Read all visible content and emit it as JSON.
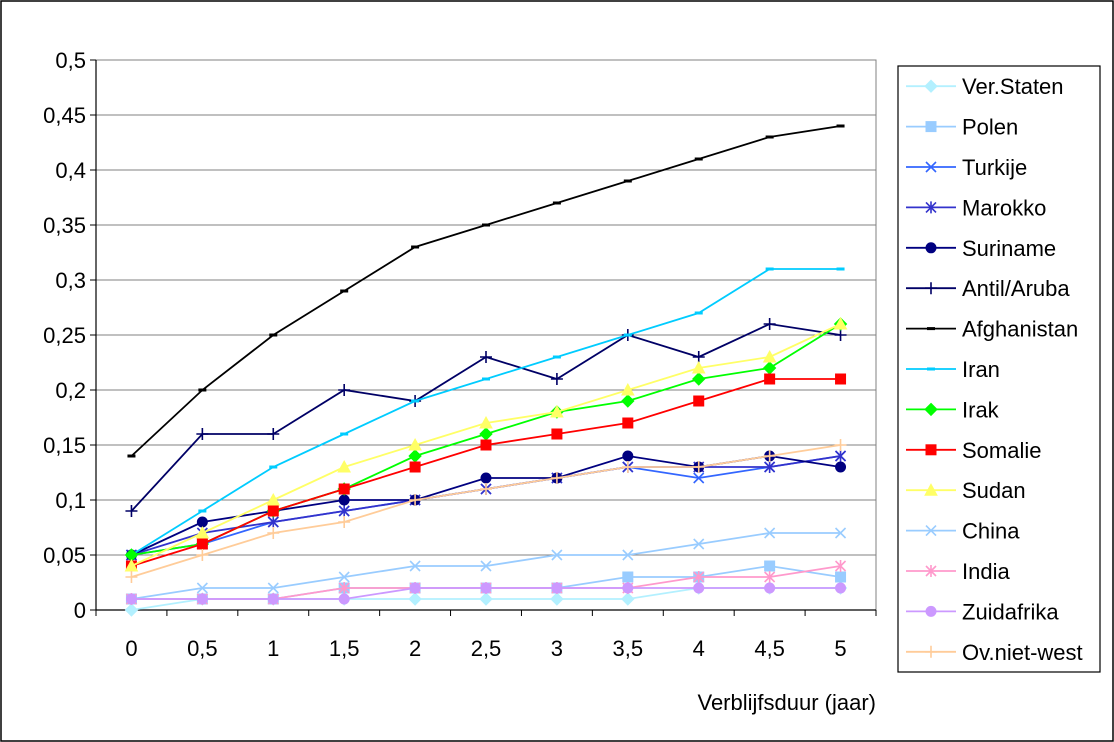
{
  "chart_data": {
    "type": "line",
    "xlabel": "Verblijfsduur (jaar)",
    "ylabel": "",
    "xlim": [
      0,
      5
    ],
    "ylim": [
      0,
      0.5
    ],
    "x": [
      0,
      0.5,
      1,
      1.5,
      2,
      2.5,
      3,
      3.5,
      4,
      4.5,
      5
    ],
    "x_tick_labels": [
      "0",
      "0,5",
      "1",
      "1,5",
      "2",
      "2,5",
      "3",
      "3,5",
      "4",
      "4,5",
      "5"
    ],
    "y_ticks": [
      0,
      0.05,
      0.1,
      0.15,
      0.2,
      0.25,
      0.3,
      0.35,
      0.4,
      0.45,
      0.5
    ],
    "y_tick_labels": [
      "0",
      "0,05",
      "0,1",
      "0,15",
      "0,2",
      "0,25",
      "0,3",
      "0,35",
      "0,4",
      "0,45",
      "0,5"
    ],
    "grid": "horizontal",
    "legend": "right",
    "series": [
      {
        "name": "Ver.Staten",
        "color": "#b3f0ff",
        "marker": "diamond",
        "values": [
          0.0,
          0.01,
          0.01,
          0.01,
          0.01,
          0.01,
          0.01,
          0.01,
          0.02,
          0.02,
          0.02
        ]
      },
      {
        "name": "Polen",
        "color": "#99ccff",
        "marker": "square",
        "values": [
          0.01,
          0.01,
          0.01,
          0.02,
          0.02,
          0.02,
          0.02,
          0.03,
          0.03,
          0.04,
          0.03
        ]
      },
      {
        "name": "Turkije",
        "color": "#3366ff",
        "marker": "x",
        "values": [
          0.05,
          0.06,
          0.08,
          0.09,
          0.1,
          0.11,
          0.12,
          0.13,
          0.12,
          0.13,
          0.14
        ]
      },
      {
        "name": "Marokko",
        "color": "#3333cc",
        "marker": "star",
        "values": [
          0.05,
          0.07,
          0.08,
          0.09,
          0.1,
          0.11,
          0.12,
          0.13,
          0.13,
          0.13,
          0.14
        ]
      },
      {
        "name": "Suriname",
        "color": "#000080",
        "marker": "circle",
        "values": [
          0.05,
          0.08,
          0.09,
          0.1,
          0.1,
          0.12,
          0.12,
          0.14,
          0.13,
          0.14,
          0.13
        ]
      },
      {
        "name": "Antil/Aruba",
        "color": "#000066",
        "marker": "plus",
        "values": [
          0.09,
          0.16,
          0.16,
          0.2,
          0.19,
          0.23,
          0.21,
          0.25,
          0.23,
          0.26,
          0.25
        ]
      },
      {
        "name": "Afghanistan",
        "color": "#000000",
        "marker": "dash",
        "values": [
          0.14,
          0.2,
          0.25,
          0.29,
          0.33,
          0.35,
          0.37,
          0.39,
          0.41,
          0.43,
          0.44
        ]
      },
      {
        "name": "Iran",
        "color": "#00ccff",
        "marker": "dash",
        "values": [
          0.05,
          0.09,
          0.13,
          0.16,
          0.19,
          0.21,
          0.23,
          0.25,
          0.27,
          0.31,
          0.31
        ]
      },
      {
        "name": "Irak",
        "color": "#00ff00",
        "marker": "diamond",
        "values": [
          0.05,
          0.06,
          0.09,
          0.11,
          0.14,
          0.16,
          0.18,
          0.19,
          0.21,
          0.22,
          0.26
        ]
      },
      {
        "name": "Somalie",
        "color": "#ff0000",
        "marker": "square",
        "values": [
          0.04,
          0.06,
          0.09,
          0.11,
          0.13,
          0.15,
          0.16,
          0.17,
          0.19,
          0.21,
          0.21
        ]
      },
      {
        "name": "Sudan",
        "color": "#ffff66",
        "marker": "triangle",
        "values": [
          0.04,
          0.07,
          0.1,
          0.13,
          0.15,
          0.17,
          0.18,
          0.2,
          0.22,
          0.23,
          0.26
        ]
      },
      {
        "name": "China",
        "color": "#99ccff",
        "marker": "x",
        "values": [
          0.01,
          0.02,
          0.02,
          0.03,
          0.04,
          0.04,
          0.05,
          0.05,
          0.06,
          0.07,
          0.07
        ]
      },
      {
        "name": "India",
        "color": "#ff99cc",
        "marker": "star",
        "values": [
          0.01,
          0.01,
          0.01,
          0.02,
          0.02,
          0.02,
          0.02,
          0.02,
          0.03,
          0.03,
          0.04
        ]
      },
      {
        "name": "Zuidafrika",
        "color": "#cc99ff",
        "marker": "circle",
        "values": [
          0.01,
          0.01,
          0.01,
          0.01,
          0.02,
          0.02,
          0.02,
          0.02,
          0.02,
          0.02,
          0.02
        ]
      },
      {
        "name": "Ov.niet-west",
        "color": "#ffcc99",
        "marker": "plus",
        "values": [
          0.03,
          0.05,
          0.07,
          0.08,
          0.1,
          0.11,
          0.12,
          0.13,
          0.13,
          0.14,
          0.15
        ]
      }
    ]
  }
}
